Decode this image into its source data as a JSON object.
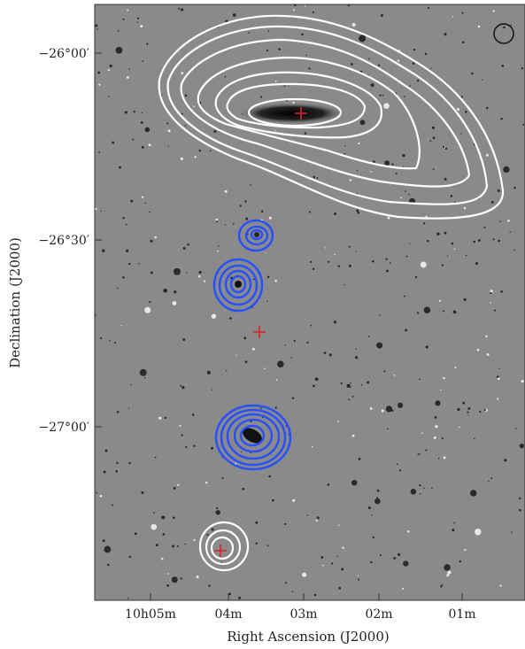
{
  "figure": {
    "x_axis": {
      "label": "Right Ascension (J2000)",
      "ticks": [
        "10h05m",
        "04m",
        "03m",
        "02m",
        "01m"
      ]
    },
    "y_axis": {
      "label": "Declination (J2000)",
      "ticks": [
        "−26°00′",
        "−26°30′",
        "−27°00′"
      ]
    }
  }
}
